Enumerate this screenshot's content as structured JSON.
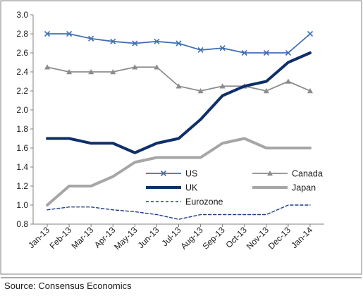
{
  "chart_data": {
    "type": "line",
    "title": "",
    "xlabel": "",
    "ylabel": "",
    "categories": [
      "Jan-13",
      "Feb-13",
      "Mar-13",
      "Apr-13",
      "May-13",
      "Jun-13",
      "Jul-13",
      "Aug-13",
      "Sep-13",
      "Oct-13",
      "Nov-13",
      "Dec-13",
      "Jan-14"
    ],
    "ylim": [
      0.8,
      3.0
    ],
    "yticks": [
      "0.8",
      "1.0",
      "1.2",
      "1.4",
      "1.6",
      "1.8",
      "2.0",
      "2.2",
      "2.4",
      "2.6",
      "2.8",
      "3.0"
    ],
    "grid": false,
    "legend": "inside, bottom-center",
    "series": [
      {
        "name": "US",
        "values": [
          2.8,
          2.8,
          2.75,
          2.72,
          2.7,
          2.72,
          2.7,
          2.63,
          2.65,
          2.6,
          2.6,
          2.6,
          2.8
        ],
        "color": "#3f6fb5",
        "style": "line-x-marker"
      },
      {
        "name": "Canada",
        "values": [
          2.45,
          2.4,
          2.4,
          2.4,
          2.45,
          2.45,
          2.25,
          2.2,
          2.25,
          2.25,
          2.2,
          2.3,
          2.2
        ],
        "color": "#8c8c8c",
        "style": "line-triangle-marker"
      },
      {
        "name": "UK",
        "values": [
          1.7,
          1.7,
          1.65,
          1.65,
          1.55,
          1.65,
          1.7,
          1.9,
          2.15,
          2.25,
          2.3,
          2.5,
          2.6
        ],
        "color": "#0f2f6b",
        "style": "thick-line"
      },
      {
        "name": "Japan",
        "values": [
          1.0,
          1.2,
          1.2,
          1.3,
          1.45,
          1.5,
          1.5,
          1.5,
          1.65,
          1.7,
          1.6,
          1.6,
          1.6
        ],
        "color": "#a6a6a6",
        "style": "thick-line"
      },
      {
        "name": "Eurozone",
        "values": [
          0.95,
          0.98,
          0.98,
          0.95,
          0.93,
          0.9,
          0.85,
          0.9,
          0.9,
          0.9,
          0.9,
          1.0,
          1.0
        ],
        "color": "#1f3f85",
        "style": "dashed-line"
      }
    ]
  },
  "source": "Source: Consensus Economics"
}
